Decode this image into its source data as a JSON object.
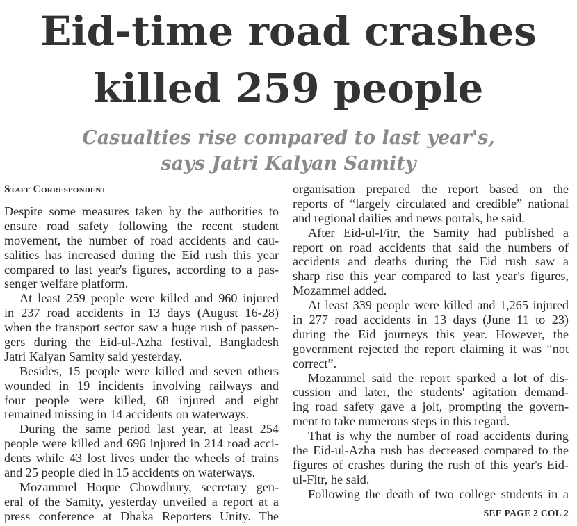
{
  "headline": {
    "lines": [
      "Eid-time road crashes",
      "killed 259 people"
    ]
  },
  "subhead": {
    "lines": [
      "Casualties rise compared to last year's,",
      "says Jatri Kalyan Samity"
    ]
  },
  "byline": "Staff Correspondent",
  "left_column": [
    {
      "indent": false,
      "lines": [
        "Despite some measures taken by the authorities to",
        "ensure road safety following the recent student",
        "movement, the number of road accidents and cau-",
        "salities has increased during the Eid rush this year",
        "compared to last year's figures, according to a pas-",
        "senger welfare platform."
      ]
    },
    {
      "indent": true,
      "lines": [
        "At least 259 people were killed and 960 injured",
        "in 237 road accidents in 13 days (August 16-28)",
        "when the transport sector saw a huge rush of passen-",
        "gers during the Eid-ul-Azha festival, Bangladesh",
        "Jatri Kalyan Samity said yesterday."
      ]
    },
    {
      "indent": true,
      "lines": [
        "Besides, 15 people were killed and seven others",
        "wounded in 19 incidents involving railways and",
        "four people were killed, 68 injured and eight",
        "remained missing in 14 accidents on waterways."
      ]
    },
    {
      "indent": true,
      "lines": [
        "During the same period last year, at least 254",
        "people were killed and 696 injured in 214 road acci-",
        "dents while 43 lost lives under the wheels of trains",
        "and 25 people died in 15 accidents on waterways."
      ]
    },
    {
      "indent": true,
      "cont": true,
      "lines": [
        "Mozammel Hoque Chowdhury, secretary gen-",
        "eral of the Samity, yesterday unveiled a report at a",
        "press conference at Dhaka Reporters Unity. The"
      ]
    }
  ],
  "right_column": [
    {
      "indent": false,
      "lines": [
        "organisation prepared the report based on the",
        "reports of “largely circulated and credible” national",
        "and regional dailies and news portals, he said."
      ]
    },
    {
      "indent": true,
      "lines": [
        "After Eid-ul-Fitr, the Samity had published a",
        "report on road accidents that said the numbers of",
        "accidents and deaths during the Eid rush saw a",
        "sharp rise this year compared to last year's figures,",
        "Mozammel added."
      ]
    },
    {
      "indent": true,
      "lines": [
        "At least 339 people were killed and 1,265 injured",
        "in 277 road accidents in 13 days (June 11 to 23)",
        "during the Eid journeys this year. However, the",
        "government rejected the report claiming it was “not",
        "correct”."
      ]
    },
    {
      "indent": true,
      "lines": [
        "Mozammel said the report sparked a lot of dis-",
        "cussion and later, the students' agitation demand-",
        "ing road safety gave a jolt, prompting the govern-",
        "ment to take numerous steps in this regard."
      ]
    },
    {
      "indent": true,
      "lines": [
        "That is why the number of road accidents during",
        "the Eid-ul-Azha rush has decreased compared to the",
        "figures of crashes during the rush of this year's Eid-",
        "ul-Fitr, he said."
      ]
    },
    {
      "indent": true,
      "cont": true,
      "lines": [
        "Following the death of two college students in a"
      ]
    }
  ],
  "jump_line": "SEE PAGE 2 COL 2"
}
